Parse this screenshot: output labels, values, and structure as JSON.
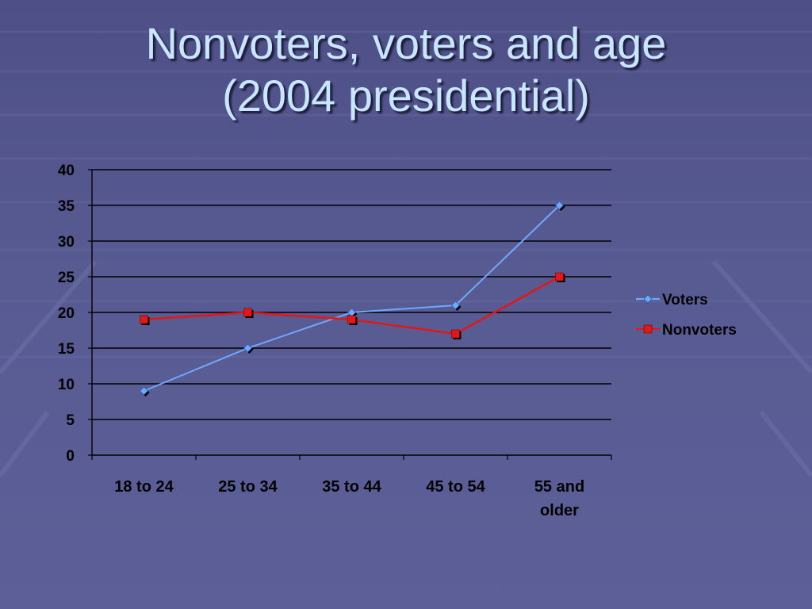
{
  "slide": {
    "title_line1": "Nonvoters, voters and age",
    "title_line2": "(2004 presidential)"
  },
  "chart_data": {
    "type": "line",
    "categories": [
      [
        "18 to 24"
      ],
      [
        "25 to 34"
      ],
      [
        "35 to 44"
      ],
      [
        "45 to 54"
      ],
      [
        "55 and",
        "older"
      ]
    ],
    "series": [
      {
        "name": "Voters",
        "values": [
          9,
          15,
          20,
          21,
          35
        ],
        "color": "#6fa8ff",
        "marker": "diamond"
      },
      {
        "name": "Nonvoters",
        "values": [
          19,
          20,
          19,
          17,
          25
        ],
        "color": "#e01818",
        "marker": "square"
      }
    ],
    "ylim": [
      0,
      40
    ],
    "yticks": [
      0,
      5,
      10,
      15,
      20,
      25,
      30,
      35,
      40
    ],
    "grid": true,
    "legend": "right"
  }
}
